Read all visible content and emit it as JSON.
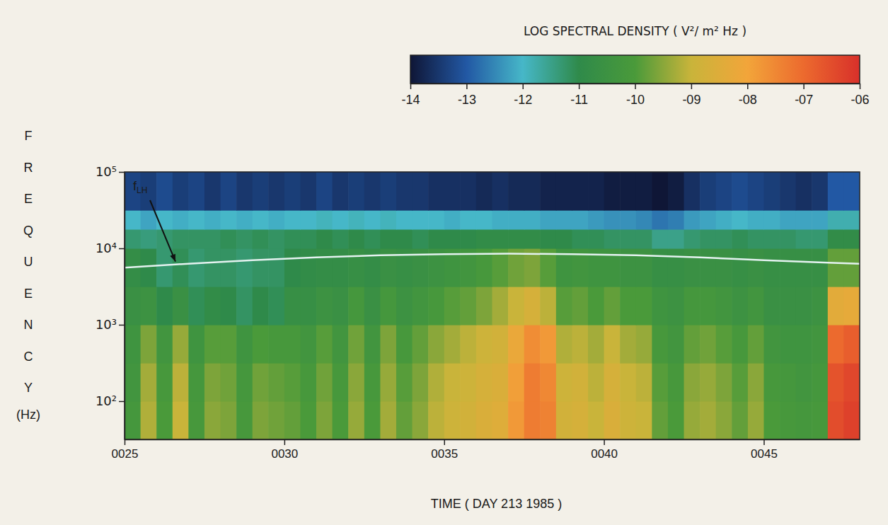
{
  "chart_data": {
    "type": "heatmap",
    "log": "y",
    "xlabel": "TIME ( DAY 213 1985 )",
    "ylabel": "FREQUENCY (Hz)",
    "xlim": [
      25,
      48
    ],
    "ylim": [
      31.6,
      100000
    ],
    "xticks": [
      {
        "value": 25,
        "label": "0025"
      },
      {
        "value": 30,
        "label": "0030"
      },
      {
        "value": 35,
        "label": "0035"
      },
      {
        "value": 40,
        "label": "0040"
      },
      {
        "value": 45,
        "label": "0045"
      }
    ],
    "yticks": [
      {
        "value": 100,
        "label": "10²"
      },
      {
        "value": 1000,
        "label": "10³"
      },
      {
        "value": 10000,
        "label": "10⁴"
      },
      {
        "value": 100000,
        "label": "10⁵"
      }
    ],
    "x_edges": [
      25,
      25.5,
      26,
      26.5,
      27,
      27.5,
      28,
      28.5,
      29,
      29.5,
      30,
      30.5,
      31,
      31.5,
      32,
      32.5,
      33,
      33.5,
      34,
      34.5,
      35,
      35.5,
      36,
      36.5,
      37,
      37.5,
      38,
      38.5,
      39,
      39.5,
      40,
      40.5,
      41,
      41.5,
      42,
      42.5,
      43,
      43.5,
      44,
      44.5,
      45,
      45.5,
      46,
      46.5,
      47,
      47.5,
      48
    ],
    "y_edges": [
      31.6,
      100,
      316,
      1000,
      3162,
      10000,
      17800,
      31600,
      100000
    ],
    "cells": [
      [
        -10.2,
        -9.2,
        -10.0,
        -9.0,
        -10.1,
        -9.5,
        -9.6,
        -10.1,
        -9.6,
        -9.7,
        -9.8,
        -10.0,
        -9.6,
        -10.0,
        -9.4,
        -10.0,
        -9.3,
        -9.8,
        -9.5,
        -9.1,
        -8.9,
        -8.8,
        -8.6,
        -8.5,
        -7.8,
        -7.3,
        -7.4,
        -8.8,
        -8.7,
        -9.0,
        -8.6,
        -8.9,
        -9.0,
        -9.8,
        -10.0,
        -9.4,
        -9.3,
        -9.5,
        -9.8,
        -9.4,
        -10.0,
        -10.1,
        -10.2,
        -10.1,
        -6.5,
        -6.3
      ],
      [
        -10.3,
        -9.3,
        -10.1,
        -9.1,
        -10.2,
        -9.6,
        -9.7,
        -10.2,
        -9.7,
        -9.8,
        -9.9,
        -10.1,
        -9.7,
        -10.1,
        -9.5,
        -10.1,
        -9.4,
        -9.9,
        -9.6,
        -9.2,
        -9.0,
        -8.9,
        -8.7,
        -8.6,
        -7.9,
        -7.3,
        -7.5,
        -8.9,
        -8.8,
        -9.1,
        -8.7,
        -9.0,
        -9.1,
        -9.9,
        -10.1,
        -9.5,
        -9.4,
        -9.6,
        -9.9,
        -9.5,
        -10.1,
        -10.2,
        -10.3,
        -10.2,
        -6.6,
        -6.4
      ],
      [
        -10.4,
        -9.6,
        -10.3,
        -9.4,
        -10.4,
        -9.9,
        -9.9,
        -10.4,
        -10.0,
        -10.1,
        -10.1,
        -10.3,
        -9.9,
        -10.3,
        -9.7,
        -10.3,
        -9.6,
        -10.1,
        -9.8,
        -9.5,
        -9.3,
        -9.1,
        -8.9,
        -8.8,
        -8.2,
        -7.6,
        -7.8,
        -9.2,
        -9.1,
        -9.3,
        -9.0,
        -9.3,
        -9.4,
        -10.1,
        -10.3,
        -9.8,
        -9.7,
        -9.9,
        -10.1,
        -9.8,
        -10.3,
        -10.4,
        -10.4,
        -10.3,
        -7.0,
        -6.8
      ],
      [
        -10.6,
        -10.5,
        -11.0,
        -10.6,
        -11.1,
        -10.9,
        -11.0,
        -11.2,
        -11.0,
        -11.1,
        -10.7,
        -10.7,
        -10.5,
        -10.6,
        -10.2,
        -10.6,
        -10.2,
        -10.5,
        -10.3,
        -10.1,
        -9.9,
        -9.8,
        -9.6,
        -9.3,
        -9.0,
        -8.7,
        -9.1,
        -9.9,
        -9.8,
        -10.0,
        -9.8,
        -10.0,
        -10.0,
        -10.4,
        -10.5,
        -10.2,
        -10.2,
        -10.3,
        -10.5,
        -10.3,
        -10.6,
        -10.6,
        -10.6,
        -10.5,
        -8.4,
        -8.3
      ],
      [
        -10.8,
        -11.0,
        -11.3,
        -11.1,
        -11.3,
        -11.2,
        -11.2,
        -11.3,
        -11.2,
        -11.2,
        -11.0,
        -10.9,
        -10.8,
        -10.8,
        -10.7,
        -10.8,
        -10.6,
        -10.7,
        -10.6,
        -10.5,
        -10.4,
        -10.3,
        -10.1,
        -9.9,
        -9.7,
        -9.6,
        -9.9,
        -10.4,
        -10.3,
        -10.4,
        -10.4,
        -10.5,
        -10.5,
        -10.7,
        -10.7,
        -10.6,
        -10.6,
        -10.6,
        -10.7,
        -10.6,
        -10.7,
        -10.7,
        -10.7,
        -10.7,
        -9.8,
        -9.8
      ],
      [
        -11.3,
        -11.4,
        -11.3,
        -11.2,
        -11.2,
        -11.2,
        -11.1,
        -11.2,
        -11.1,
        -11.2,
        -11.1,
        -11.1,
        -11.0,
        -11.1,
        -11.0,
        -11.1,
        -11.0,
        -11.0,
        -11.1,
        -11.0,
        -11.0,
        -11.0,
        -10.9,
        -10.9,
        -10.9,
        -10.9,
        -11.0,
        -11.0,
        -11.1,
        -11.1,
        -11.2,
        -11.2,
        -11.2,
        -11.5,
        -11.5,
        -11.3,
        -11.2,
        -11.2,
        -11.1,
        -11.2,
        -11.2,
        -11.2,
        -11.3,
        -11.3,
        -10.9,
        -10.9
      ],
      [
        -12.0,
        -12.2,
        -12.0,
        -12.1,
        -12.0,
        -12.1,
        -12.0,
        -12.1,
        -12.0,
        -12.1,
        -12.0,
        -12.0,
        -11.9,
        -12.0,
        -11.9,
        -12.0,
        -11.9,
        -12.0,
        -12.0,
        -12.0,
        -12.1,
        -12.0,
        -12.0,
        -12.1,
        -12.1,
        -12.1,
        -12.2,
        -12.2,
        -12.2,
        -12.3,
        -12.4,
        -12.4,
        -12.5,
        -12.7,
        -12.6,
        -12.3,
        -12.2,
        -12.1,
        -12.0,
        -12.1,
        -12.1,
        -12.2,
        -12.2,
        -12.2,
        -11.8,
        -11.8
      ],
      [
        -13.3,
        -13.4,
        -13.2,
        -13.4,
        -13.3,
        -13.5,
        -13.3,
        -13.5,
        -13.4,
        -13.5,
        -13.4,
        -13.5,
        -13.3,
        -13.5,
        -13.4,
        -13.5,
        -13.4,
        -13.5,
        -13.5,
        -13.6,
        -13.6,
        -13.6,
        -13.7,
        -13.6,
        -13.7,
        -13.7,
        -13.8,
        -13.8,
        -13.8,
        -13.8,
        -13.9,
        -13.9,
        -13.9,
        -14.0,
        -13.9,
        -13.6,
        -13.4,
        -13.3,
        -13.2,
        -13.3,
        -13.4,
        -13.5,
        -13.6,
        -13.5,
        -13.0,
        -13.0
      ]
    ],
    "colorbar_title": "LOG SPECTRAL DENSITY ( V²/ m² Hz )",
    "colorbar_range": [
      -14,
      -6
    ],
    "colorbar_ticks": [
      -14,
      -13,
      -12,
      -11,
      -10,
      {
        "value": -9,
        "label": "-09"
      },
      {
        "value": -8,
        "label": "-08"
      },
      {
        "value": -7,
        "label": "-07"
      },
      {
        "value": -6,
        "label": "-06"
      }
    ],
    "colors": [
      "#0f1636",
      "#2258a4",
      "#46b7c8",
      "#2f8a4a",
      "#4a9a3a",
      "#c9b43a",
      "#f2a53a",
      "#ec6a2e",
      "#d8302a"
    ],
    "series": [
      {
        "name": "fLH",
        "color": "#e4f2f0",
        "type": "line",
        "x": [
          25,
          27,
          29,
          31,
          33,
          35,
          37,
          39,
          41,
          43,
          45,
          47,
          48
        ],
        "values": [
          5600,
          6300,
          7000,
          7600,
          8100,
          8400,
          8500,
          8400,
          8100,
          7600,
          7000,
          6500,
          6300
        ]
      }
    ]
  }
}
